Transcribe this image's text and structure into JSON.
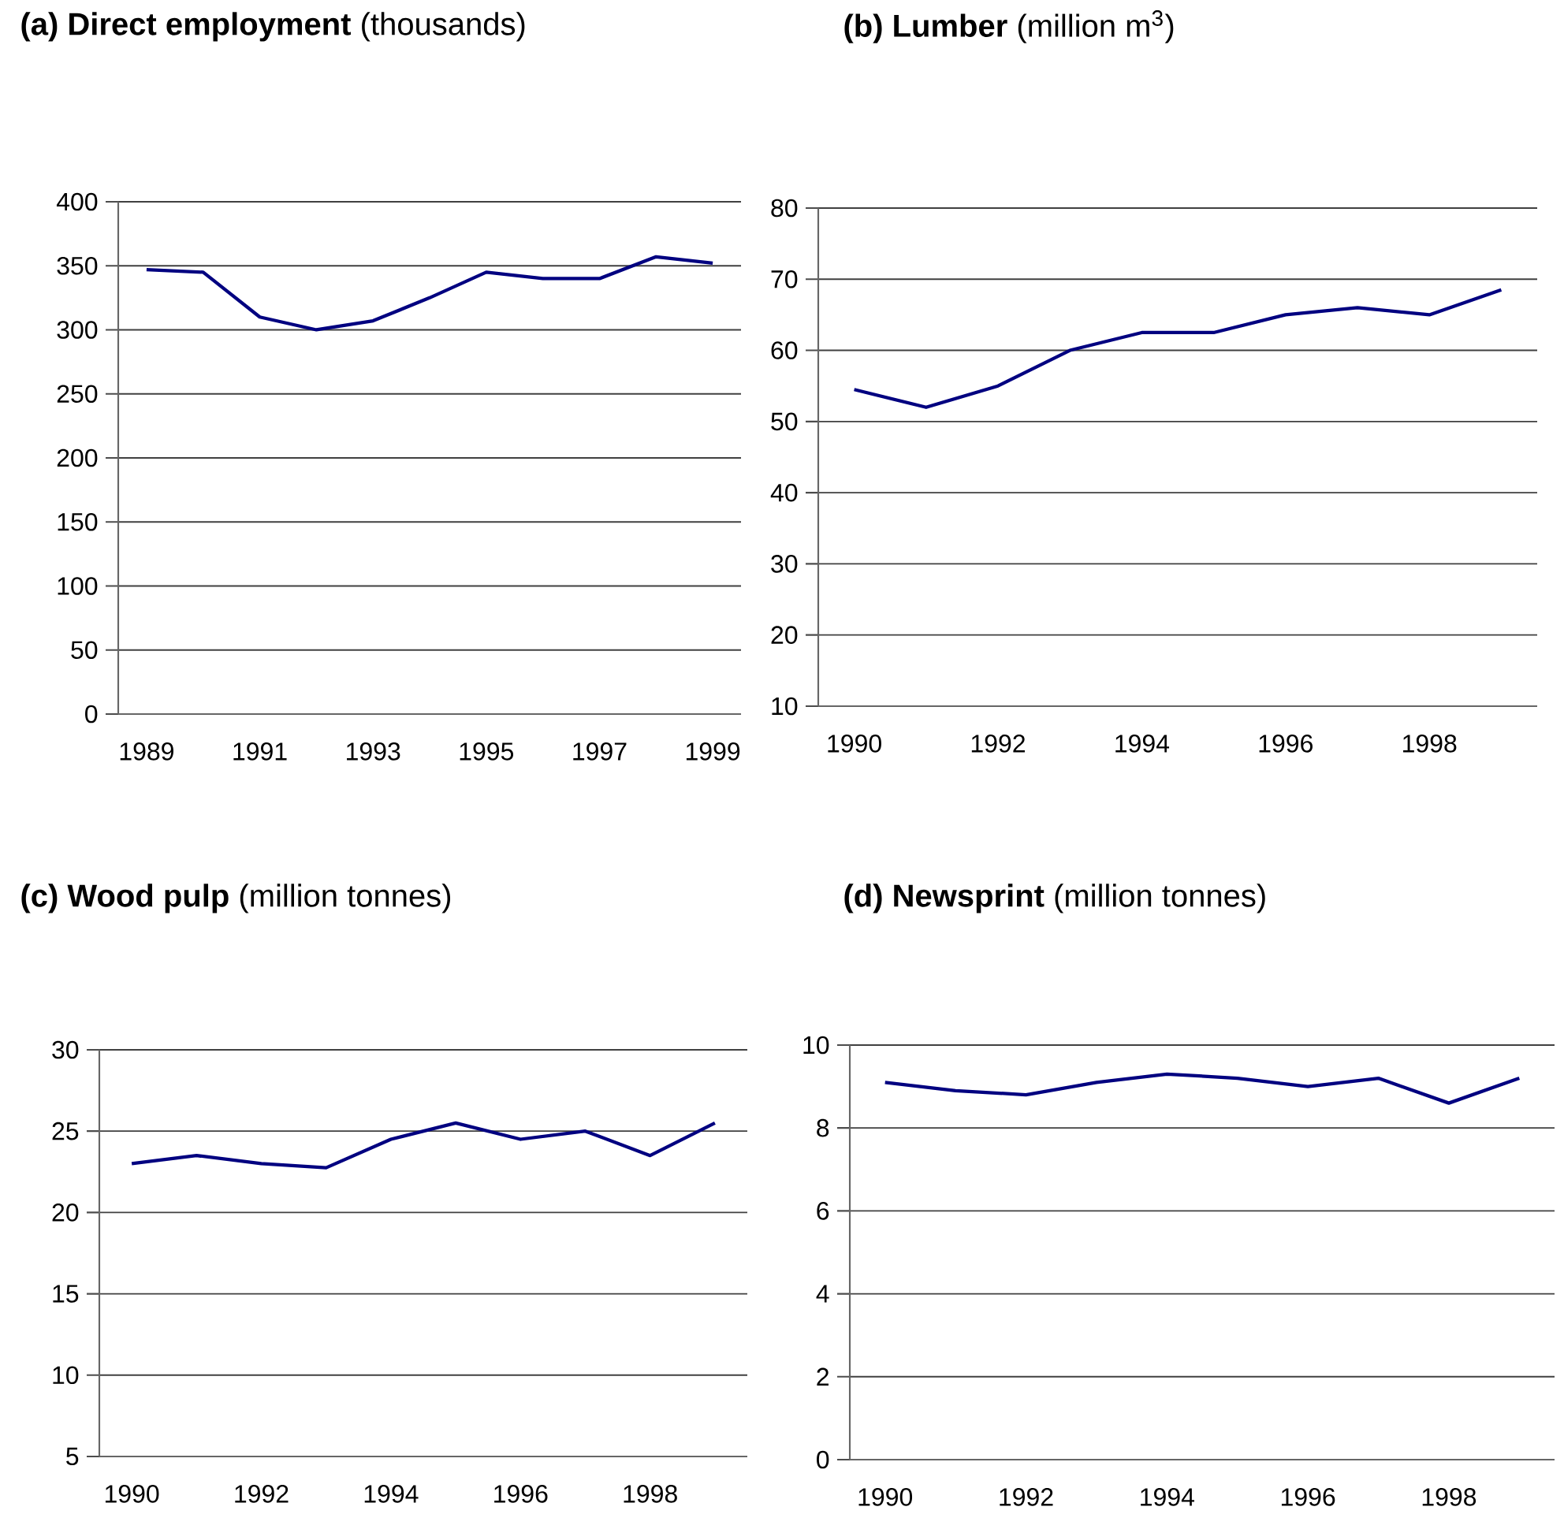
{
  "chart_data": [
    {
      "type": "line",
      "title": "**(a) Direct employment** (thousands)",
      "categories": [
        "1989",
        null,
        "1991",
        null,
        "1993",
        null,
        "1995",
        null,
        "1997",
        null,
        "1999"
      ],
      "values": [
        347,
        345,
        310,
        300,
        307,
        325,
        345,
        340,
        340,
        357,
        352
      ],
      "color": "#000080",
      "ylim": [
        0,
        400
      ],
      "yticks": [
        0,
        50,
        100,
        150,
        200,
        250,
        300,
        350,
        400
      ],
      "grid": "y"
    },
    {
      "type": "line",
      "title": "**(b) Lumber** (million m$^{3}$)",
      "categories": [
        "1990",
        null,
        "1992",
        null,
        "1994",
        null,
        "1996",
        null,
        "1998",
        null
      ],
      "values": [
        54.5,
        52,
        55,
        60,
        62.5,
        62.5,
        65,
        66,
        65,
        68.5
      ],
      "color": "#000080",
      "ylim": [
        10,
        80
      ],
      "yticks": [
        10,
        20,
        30,
        40,
        50,
        60,
        70,
        80
      ],
      "grid": "y"
    },
    {
      "type": "line",
      "title": "**(c) Wood pulp** (million tonnes)",
      "categories": [
        "1990",
        null,
        "1992",
        null,
        "1994",
        null,
        "1996",
        null,
        "1998",
        null
      ],
      "values": [
        23,
        23.5,
        23,
        22.75,
        24.5,
        25.5,
        24.5,
        25,
        23.5,
        25.5
      ],
      "color": "#000080",
      "ylim": [
        5,
        30
      ],
      "yticks": [
        5,
        10,
        15,
        20,
        25,
        30
      ],
      "grid": "y"
    },
    {
      "type": "line",
      "title": "**(d) Newsprint** (million tonnes)",
      "categories": [
        "1990",
        null,
        "1992",
        null,
        "1994",
        null,
        "1996",
        null,
        "1998",
        null
      ],
      "values": [
        9.1,
        8.9,
        8.8,
        9.1,
        9.3,
        9.2,
        9.0,
        9.2,
        8.6,
        9.2
      ],
      "color": "#000080",
      "ylim": [
        0,
        10
      ],
      "yticks": [
        0,
        2,
        4,
        6,
        8,
        10
      ],
      "grid": "y"
    }
  ]
}
